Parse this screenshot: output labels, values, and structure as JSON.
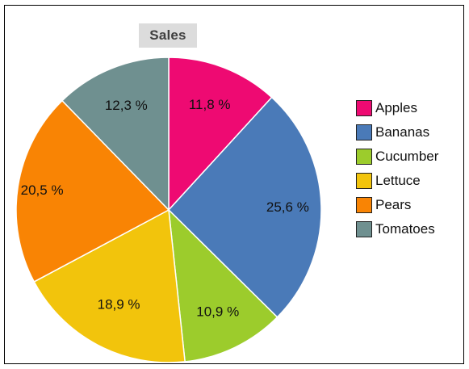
{
  "chart_data": {
    "type": "pie",
    "title": "Sales",
    "legend_position": "right",
    "categories": [
      "Apples",
      "Bananas",
      "Cucumber",
      "Lettuce",
      "Pears",
      "Tomatoes"
    ],
    "values": [
      11.8,
      25.6,
      10.9,
      18.9,
      20.5,
      12.3
    ],
    "value_labels": [
      "11,8 %",
      "25,6 %",
      "10,9 %",
      "18,9 %",
      "20,5 %",
      "12,3 %"
    ],
    "colors": [
      "#ee0a72",
      "#4a7ab8",
      "#9ccc2c",
      "#f2c40c",
      "#f98404",
      "#6f9090"
    ]
  }
}
